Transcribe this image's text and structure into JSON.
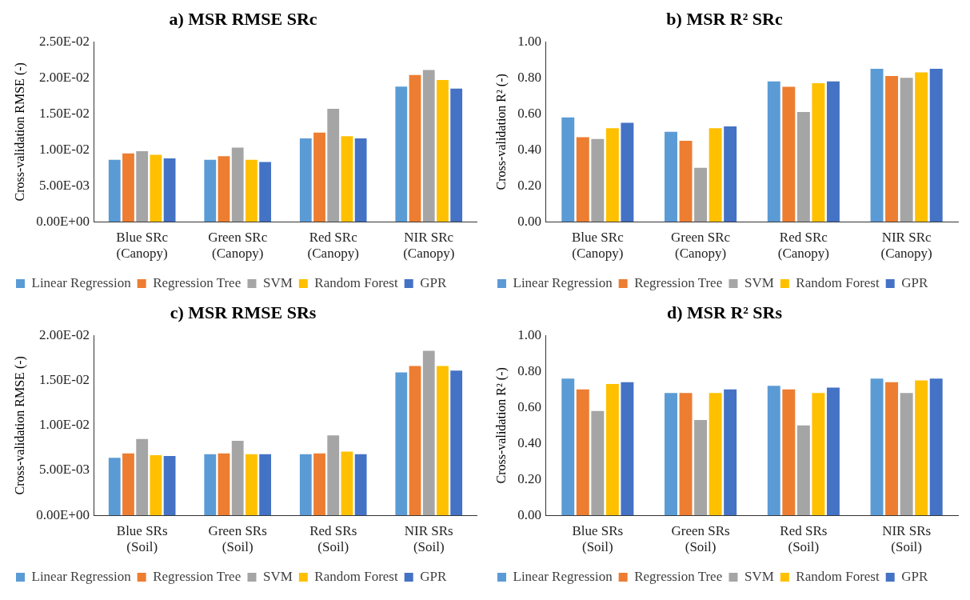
{
  "chart_data": [
    {
      "type": "bar",
      "title": "a) MSR RMSE SRc",
      "ylabel": "Cross-validation RMSE (-)",
      "categories": [
        "Blue SRc\n(Canopy)",
        "Green SRc\n(Canopy)",
        "Red SRc\n(Canopy)",
        "NIR SRc\n(Canopy)"
      ],
      "ylim": [
        0,
        0.025
      ],
      "yticks": [
        {
          "value": 0,
          "label": "0.00E+00"
        },
        {
          "value": 0.005,
          "label": "5.00E-03"
        },
        {
          "value": 0.01,
          "label": "1.00E-02"
        },
        {
          "value": 0.015,
          "label": "1.50E-02"
        },
        {
          "value": 0.02,
          "label": "2.00E-02"
        },
        {
          "value": 0.025,
          "label": "2.50E-02"
        }
      ],
      "grid": false,
      "legend": "bottom",
      "series": [
        {
          "name": "Linear Regression",
          "color": "#5b9bd5",
          "values": [
            0.0086,
            0.0086,
            0.0116,
            0.0188
          ]
        },
        {
          "name": "Regression Tree",
          "color": "#ed7d31",
          "values": [
            0.0095,
            0.0091,
            0.0124,
            0.0204
          ]
        },
        {
          "name": "SVM",
          "color": "#a5a5a5",
          "values": [
            0.0098,
            0.0103,
            0.0157,
            0.0211
          ]
        },
        {
          "name": "Random Forest",
          "color": "#ffc000",
          "values": [
            0.0093,
            0.0086,
            0.0119,
            0.0197
          ]
        },
        {
          "name": "GPR",
          "color": "#4472c4",
          "values": [
            0.0088,
            0.0083,
            0.0116,
            0.0185
          ]
        }
      ]
    },
    {
      "type": "bar",
      "title": "b) MSR R² SRc",
      "ylabel": "Cross-validation R² (-)",
      "categories": [
        "Blue SRc\n(Canopy)",
        "Green SRc\n(Canopy)",
        "Red SRc\n(Canopy)",
        "NIR SRc\n(Canopy)"
      ],
      "ylim": [
        0,
        1
      ],
      "yticks": [
        {
          "value": 0,
          "label": "0.00"
        },
        {
          "value": 0.2,
          "label": "0.20"
        },
        {
          "value": 0.4,
          "label": "0.40"
        },
        {
          "value": 0.6,
          "label": "0.60"
        },
        {
          "value": 0.8,
          "label": "0.80"
        },
        {
          "value": 1,
          "label": "1.00"
        }
      ],
      "grid": false,
      "legend": "bottom",
      "series": [
        {
          "name": "Linear Regression",
          "color": "#5b9bd5",
          "values": [
            0.58,
            0.5,
            0.78,
            0.85
          ]
        },
        {
          "name": "Regression Tree",
          "color": "#ed7d31",
          "values": [
            0.47,
            0.45,
            0.75,
            0.81
          ]
        },
        {
          "name": "SVM",
          "color": "#a5a5a5",
          "values": [
            0.46,
            0.3,
            0.61,
            0.8
          ]
        },
        {
          "name": "Random Forest",
          "color": "#ffc000",
          "values": [
            0.52,
            0.52,
            0.77,
            0.83
          ]
        },
        {
          "name": "GPR",
          "color": "#4472c4",
          "values": [
            0.55,
            0.53,
            0.78,
            0.85
          ]
        }
      ]
    },
    {
      "type": "bar",
      "title": "c) MSR RMSE SRs",
      "ylabel": "Cross-validation RMSE (-)",
      "categories": [
        "Blue SRs\n(Soil)",
        "Green SRs\n(Soil)",
        "Red SRs\n(Soil)",
        "NIR SRs\n(Soil)"
      ],
      "ylim": [
        0,
        0.02
      ],
      "yticks": [
        {
          "value": 0,
          "label": "0.00E+00"
        },
        {
          "value": 0.005,
          "label": "5.00E-03"
        },
        {
          "value": 0.01,
          "label": "1.00E-02"
        },
        {
          "value": 0.015,
          "label": "1.50E-02"
        },
        {
          "value": 0.02,
          "label": "2.00E-02"
        }
      ],
      "grid": false,
      "legend": "bottom",
      "series": [
        {
          "name": "Linear Regression",
          "color": "#5b9bd5",
          "values": [
            0.0064,
            0.0068,
            0.0068,
            0.0159
          ]
        },
        {
          "name": "Regression Tree",
          "color": "#ed7d31",
          "values": [
            0.0069,
            0.0069,
            0.0069,
            0.0166
          ]
        },
        {
          "name": "SVM",
          "color": "#a5a5a5",
          "values": [
            0.0085,
            0.0083,
            0.0089,
            0.0183
          ]
        },
        {
          "name": "Random Forest",
          "color": "#ffc000",
          "values": [
            0.0067,
            0.0068,
            0.0071,
            0.0166
          ]
        },
        {
          "name": "GPR",
          "color": "#4472c4",
          "values": [
            0.0066,
            0.0068,
            0.0068,
            0.0161
          ]
        }
      ]
    },
    {
      "type": "bar",
      "title": "d) MSR R² SRs",
      "ylabel": "Cross-validation R² (-)",
      "categories": [
        "Blue SRs\n(Soil)",
        "Green SRs\n(Soil)",
        "Red SRs\n(Soil)",
        "NIR SRs\n(Soil)"
      ],
      "ylim": [
        0,
        1
      ],
      "yticks": [
        {
          "value": 0,
          "label": "0.00"
        },
        {
          "value": 0.2,
          "label": "0.20"
        },
        {
          "value": 0.4,
          "label": "0.40"
        },
        {
          "value": 0.6,
          "label": "0.60"
        },
        {
          "value": 0.8,
          "label": "0.80"
        },
        {
          "value": 1,
          "label": "1.00"
        }
      ],
      "grid": false,
      "legend": "bottom",
      "series": [
        {
          "name": "Linear Regression",
          "color": "#5b9bd5",
          "values": [
            0.76,
            0.68,
            0.72,
            0.76
          ]
        },
        {
          "name": "Regression Tree",
          "color": "#ed7d31",
          "values": [
            0.7,
            0.68,
            0.7,
            0.74
          ]
        },
        {
          "name": "SVM",
          "color": "#a5a5a5",
          "values": [
            0.58,
            0.53,
            0.5,
            0.68
          ]
        },
        {
          "name": "Random Forest",
          "color": "#ffc000",
          "values": [
            0.73,
            0.68,
            0.68,
            0.75
          ]
        },
        {
          "name": "GPR",
          "color": "#4472c4",
          "values": [
            0.74,
            0.7,
            0.71,
            0.76
          ]
        }
      ]
    }
  ]
}
